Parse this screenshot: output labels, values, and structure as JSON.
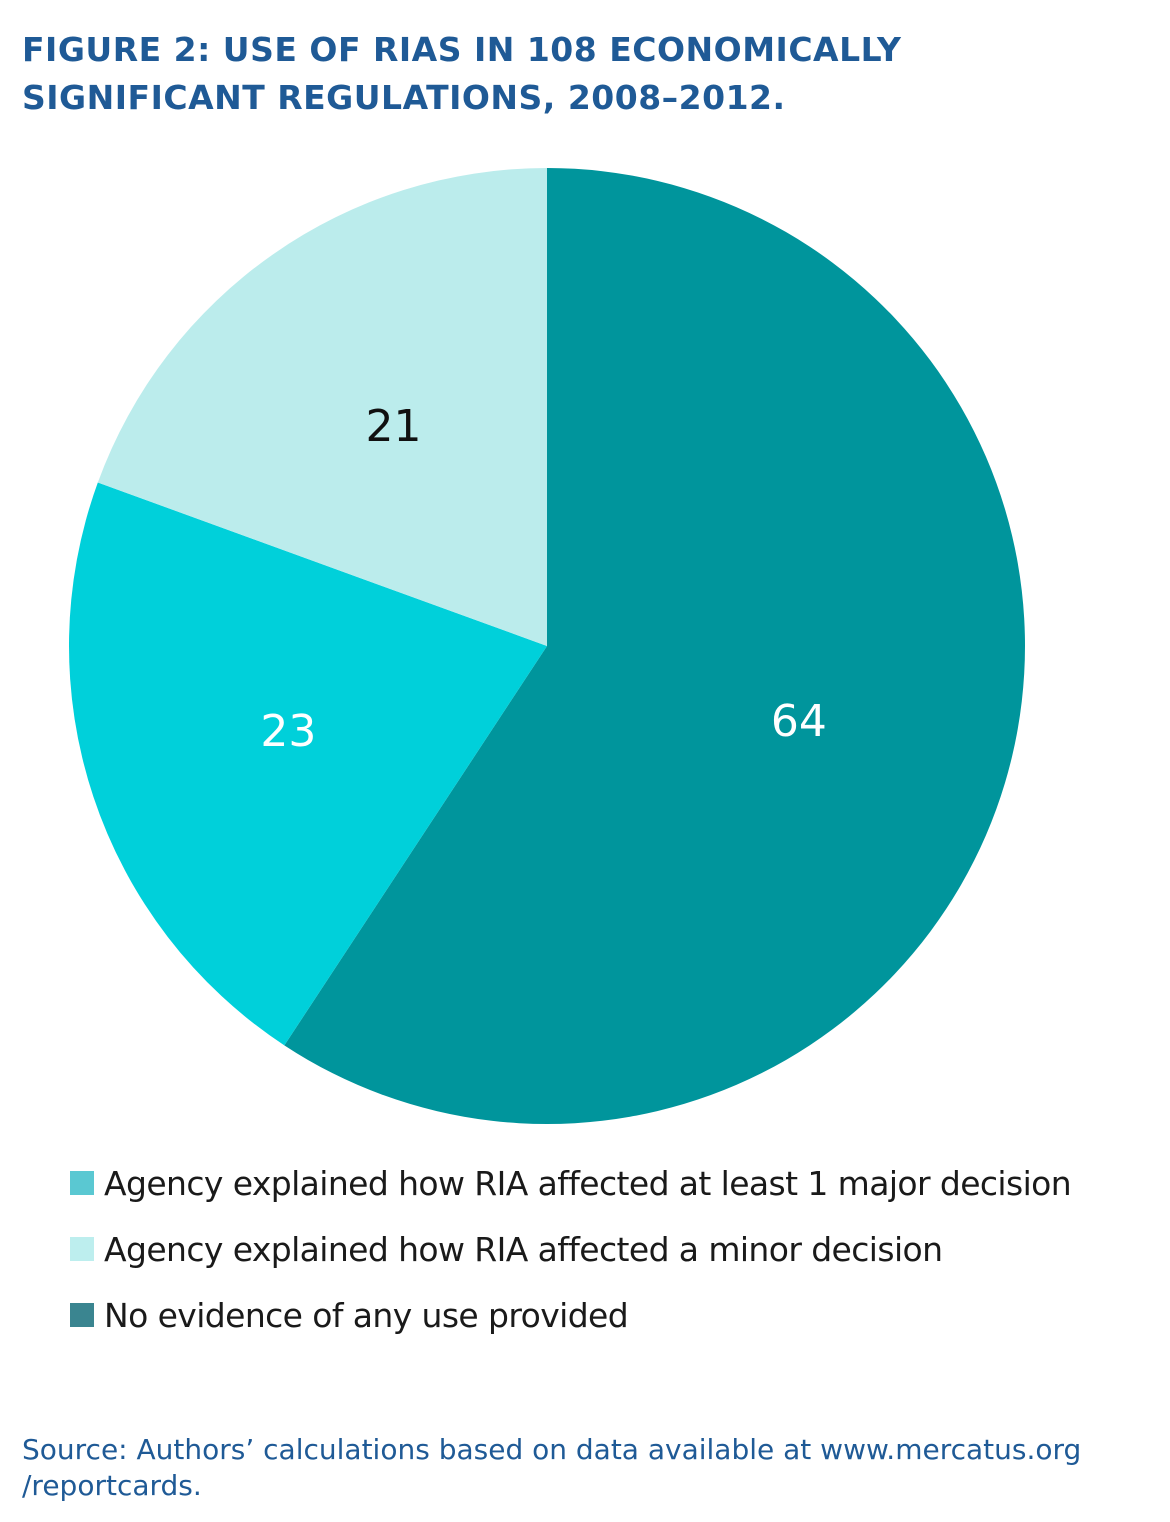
{
  "title": "FIGURE 2: USE OF RIAS IN 108 ECONOMICALLY SIGNIFICANT REGULATIONS, 2008–2012.",
  "source": "Source: Authors’ calculations based on data available at www.mercatus.org /reportcards.",
  "chart_data": {
    "type": "pie",
    "title": "FIGURE 2: USE OF RIAS IN 108 ECONOMICALLY SIGNIFICANT REGULATIONS, 2008–2012.",
    "total": 108,
    "slices": [
      {
        "label": "No evidence of any use provided",
        "value": 64,
        "display": "64",
        "color": "#00959c",
        "legend_color": "#3a8590",
        "text_color": "#ffffff"
      },
      {
        "label": "Agency explained how RIA affected at least 1 major decision",
        "value": 23,
        "display": "23",
        "color": "#00d0da",
        "legend_color": "#5ac8d2",
        "text_color": "#ffffff"
      },
      {
        "label": "Agency explained how RIA affected a minor decision",
        "value": 21,
        "display": "21",
        "color": "#bbecec",
        "legend_color": "#bdeeee",
        "text_color": "#111111"
      }
    ],
    "legend": [
      {
        "label": "Agency explained how RIA affected at least 1 major decision",
        "color": "#5ac8d2"
      },
      {
        "label": "Agency explained how RIA affected a minor decision",
        "color": "#bdeeee"
      },
      {
        "label": "No evidence of any use provided",
        "color": "#3a8590"
      }
    ],
    "legend_position": "bottom",
    "start": "12 o'clock",
    "direction": "clockwise"
  }
}
